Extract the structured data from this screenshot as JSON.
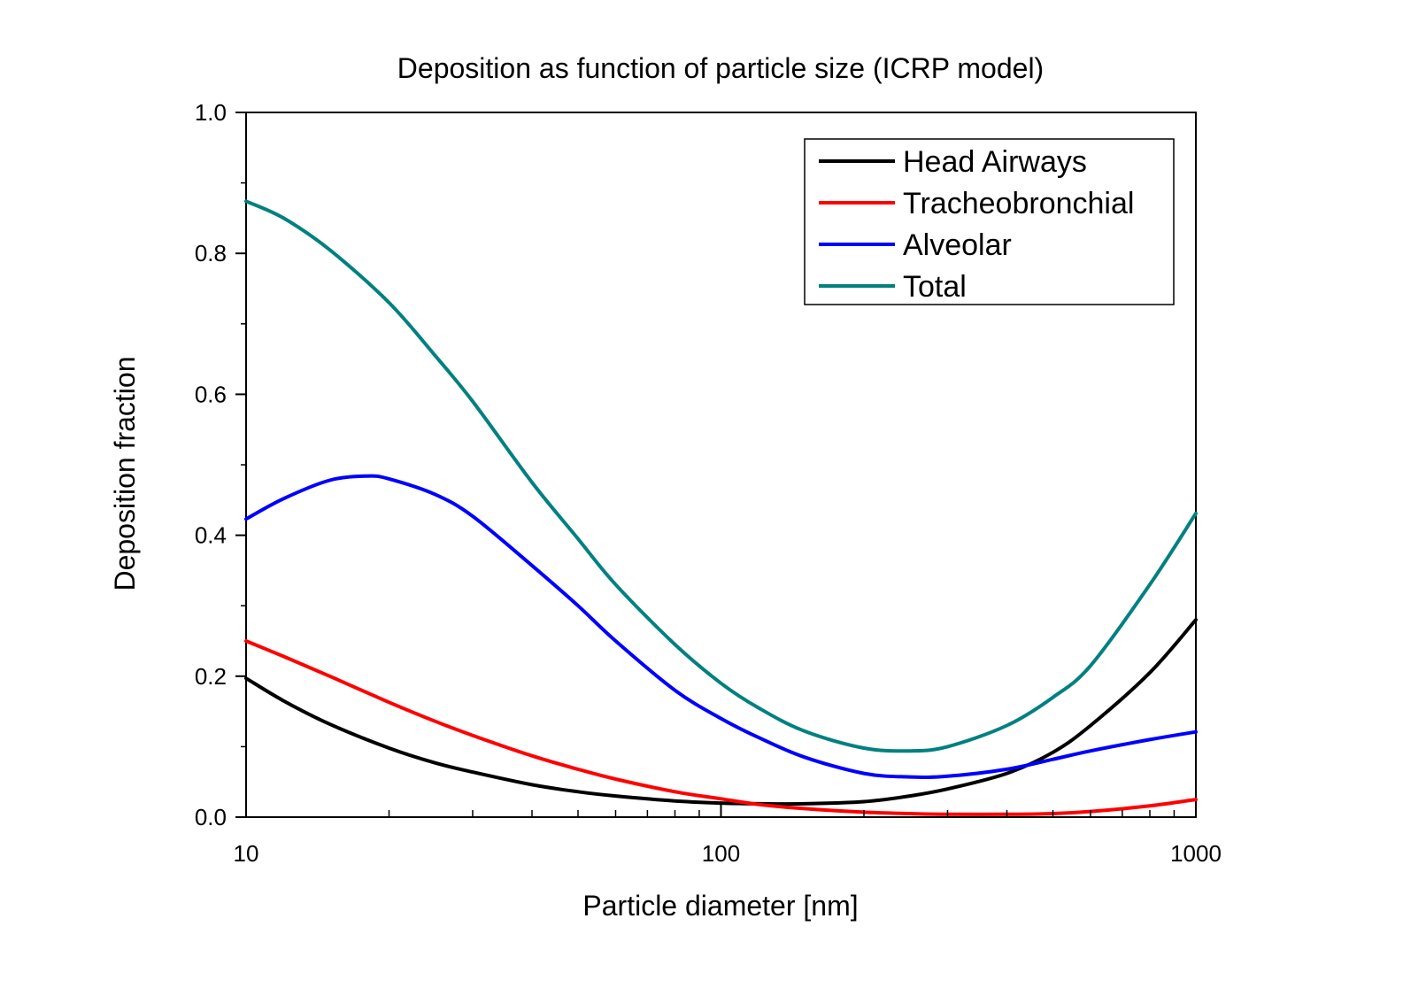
{
  "chart_data": {
    "type": "line",
    "title": "Deposition as function of particle size (ICRP model)",
    "xlabel": "Particle diameter [nm]",
    "ylabel": "Deposition fraction",
    "xscale": "log",
    "xlim": [
      10,
      1000
    ],
    "ylim": [
      0,
      1.0
    ],
    "x_ticks": [
      {
        "value": 10,
        "label": "10"
      },
      {
        "value": 100,
        "label": "100"
      },
      {
        "value": 1000,
        "label": "1000"
      }
    ],
    "y_ticks": [
      {
        "value": 0.0,
        "label": "0.0"
      },
      {
        "value": 0.2,
        "label": "0.2"
      },
      {
        "value": 0.4,
        "label": "0.4"
      },
      {
        "value": 0.6,
        "label": "0.6"
      },
      {
        "value": 0.8,
        "label": "0.8"
      },
      {
        "value": 1.0,
        "label": "1.0"
      }
    ],
    "grid": false,
    "legend_position": "top-right",
    "series": [
      {
        "name": "Head Airways",
        "color": "#000000",
        "x": [
          10,
          12,
          15,
          20,
          25,
          30,
          40,
          50,
          60,
          80,
          100,
          120,
          150,
          200,
          250,
          300,
          400,
          500,
          600,
          800,
          1000
        ],
        "y": [
          0.197,
          0.165,
          0.132,
          0.098,
          0.077,
          0.064,
          0.046,
          0.036,
          0.03,
          0.023,
          0.02,
          0.019,
          0.019,
          0.022,
          0.03,
          0.04,
          0.062,
          0.092,
          0.13,
          0.205,
          0.28
        ]
      },
      {
        "name": "Tracheobronchial",
        "color": "#ff0000",
        "x": [
          10,
          12,
          15,
          20,
          25,
          30,
          40,
          50,
          60,
          80,
          100,
          120,
          150,
          200,
          250,
          300,
          400,
          500,
          600,
          800,
          1000
        ],
        "y": [
          0.25,
          0.228,
          0.2,
          0.163,
          0.136,
          0.116,
          0.087,
          0.068,
          0.054,
          0.036,
          0.026,
          0.018,
          0.012,
          0.007,
          0.005,
          0.004,
          0.004,
          0.005,
          0.008,
          0.016,
          0.025
        ]
      },
      {
        "name": "Alveolar",
        "color": "#0000ff",
        "x": [
          10,
          12,
          15,
          18,
          20,
          25,
          30,
          40,
          50,
          60,
          80,
          100,
          120,
          150,
          200,
          250,
          300,
          400,
          500,
          600,
          800,
          1000
        ],
        "y": [
          0.423,
          0.452,
          0.478,
          0.484,
          0.48,
          0.458,
          0.427,
          0.357,
          0.3,
          0.25,
          0.18,
          0.14,
          0.113,
          0.085,
          0.062,
          0.057,
          0.058,
          0.068,
          0.082,
          0.094,
          0.11,
          0.121
        ]
      },
      {
        "name": "Total",
        "color": "#008080",
        "x": [
          10,
          12,
          15,
          20,
          25,
          30,
          40,
          50,
          60,
          80,
          100,
          120,
          150,
          200,
          250,
          300,
          400,
          500,
          600,
          800,
          1000
        ],
        "y": [
          0.874,
          0.85,
          0.805,
          0.73,
          0.655,
          0.59,
          0.475,
          0.395,
          0.33,
          0.245,
          0.19,
          0.155,
          0.122,
          0.098,
          0.094,
          0.1,
          0.13,
          0.17,
          0.215,
          0.33,
          0.431
        ]
      }
    ]
  }
}
